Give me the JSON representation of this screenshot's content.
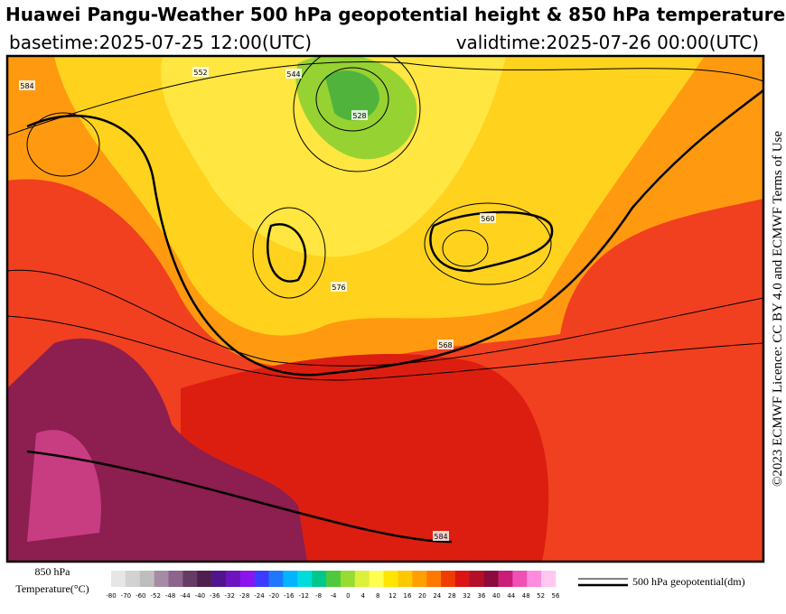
{
  "header": {
    "title": "Huawei Pangu-Weather 500 hPa geopotential height & 850 hPa temperature",
    "basetime": "basetime:2025-07-25 12:00(UTC)",
    "validtime": "validtime:2025-07-26 00:00(UTC)"
  },
  "licence": "©2023 ECMWF Licence: CC BY 4.0 and ECMWF Terms of Use",
  "contour_labels": [
    "584",
    "552",
    "544",
    "528",
    "560",
    "576",
    "568",
    "584"
  ],
  "legend": {
    "temperature_label": [
      "850 hPa",
      "Temperature(°C)"
    ],
    "ticks": [
      -80,
      -70,
      -60,
      -52,
      -48,
      -44,
      -40,
      -36,
      -32,
      -28,
      -24,
      -20,
      -16,
      -12,
      -8,
      -4,
      0,
      4,
      8,
      12,
      16,
      20,
      24,
      28,
      32,
      36,
      40,
      44,
      48,
      52,
      56
    ],
    "colors": [
      "#e6e6e6",
      "#d2d2d2",
      "#bebebe",
      "#a58ca5",
      "#8c648c",
      "#643c64",
      "#501e50",
      "#50148c",
      "#6e14be",
      "#8c14f0",
      "#3c3cff",
      "#1e78ff",
      "#00b4ff",
      "#00dcdc",
      "#00c88c",
      "#50c83c",
      "#96dc32",
      "#dcf03c",
      "#ffff50",
      "#ffe600",
      "#ffc800",
      "#ffa000",
      "#ff7800",
      "#f03c00",
      "#dc1414",
      "#b40f28",
      "#8c0a3c",
      "#c81e78",
      "#f050b4",
      "#ff8cdc",
      "#ffc8f0"
    ],
    "line_label": "500 hPa geopotential(dm)"
  }
}
